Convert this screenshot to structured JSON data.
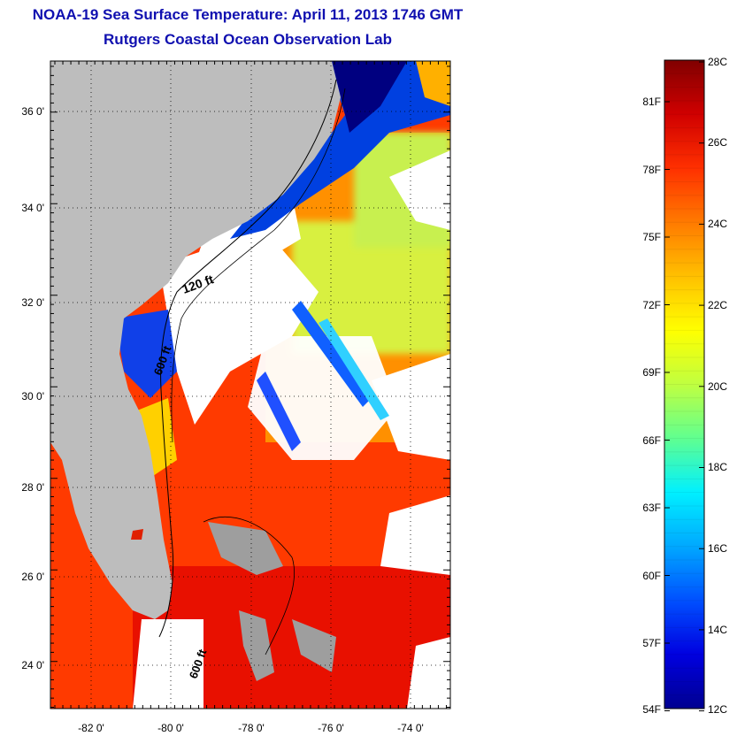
{
  "titles": {
    "line1": "NOAA-19 Sea Surface Temperature:  April 11, 2013 1746 GMT",
    "line2": "Rutgers Coastal Ocean Observation Lab"
  },
  "map": {
    "lat_labels": [
      "36 0'",
      "34 0'",
      "32 0'",
      "30 0'",
      "28 0'",
      "26 0'",
      "24 0'"
    ],
    "lon_labels": [
      "-82 0'",
      "-80 0'",
      "-78 0'",
      "-76 0'",
      "-74 0'"
    ],
    "contour_labels": [
      "120 ft",
      "600 ft",
      "600 ft"
    ]
  },
  "colorbar": {
    "celsius_labels": [
      "28C",
      "26C",
      "24C",
      "22C",
      "20C",
      "18C",
      "16C",
      "14C",
      "12C"
    ],
    "fahrenheit_labels": [
      "81F",
      "78F",
      "75F",
      "72F",
      "69F",
      "66F",
      "63F",
      "60F",
      "57F",
      "54F"
    ],
    "colors": [
      "#800000",
      "#d00000",
      "#ff3000",
      "#ff7a00",
      "#ffc000",
      "#ffff00",
      "#c0ff40",
      "#60ff90",
      "#00f0ff",
      "#00a8ff",
      "#0050ff",
      "#0000e0",
      "#000090"
    ]
  }
}
